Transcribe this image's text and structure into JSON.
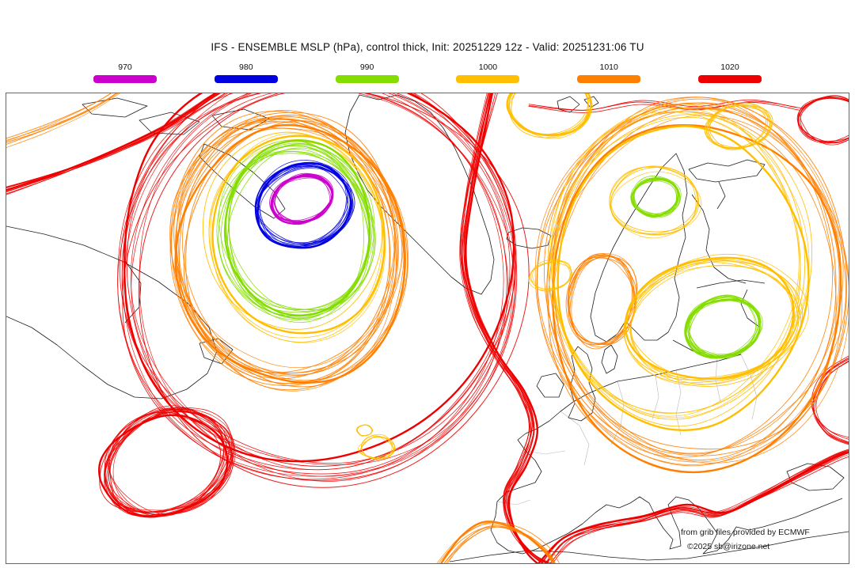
{
  "title": "IFS - ENSEMBLE MSLP (hPa), control thick, Init: 20251229 12z - Valid: 20251231:06 TU",
  "legend": {
    "items": [
      {
        "label": "970",
        "color": "#cc00cc"
      },
      {
        "label": "980",
        "color": "#0000e0"
      },
      {
        "label": "990",
        "color": "#85dd00"
      },
      {
        "label": "1000",
        "color": "#ffbf00"
      },
      {
        "label": "1010",
        "color": "#ff7f00"
      },
      {
        "label": "1020",
        "color": "#ee0000"
      }
    ]
  },
  "attribution": {
    "line1": "from grib files provided by ECMWF",
    "line2": "©2025 sb@irizone.net"
  }
}
